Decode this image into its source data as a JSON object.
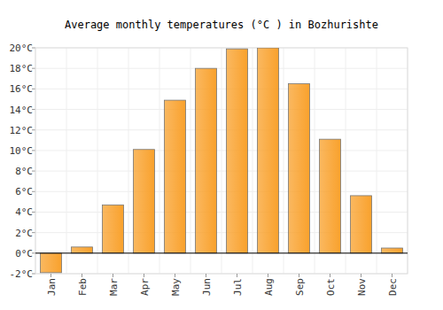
{
  "chart_data": {
    "type": "bar",
    "title": "Average monthly temperatures (°C ) in Bozhurishte",
    "categories": [
      "Jan",
      "Feb",
      "Mar",
      "Apr",
      "May",
      "Jun",
      "Jul",
      "Aug",
      "Sep",
      "Oct",
      "Nov",
      "Dec"
    ],
    "values": [
      -1.9,
      0.6,
      4.7,
      10.1,
      14.9,
      18.0,
      19.9,
      20.0,
      16.5,
      11.1,
      5.6,
      0.5
    ],
    "color": "#f9a12c",
    "ylim": [
      -2,
      20
    ],
    "yticks": [
      {
        "value": -2,
        "label": "-2°C"
      },
      {
        "value": 0,
        "label": "0°C"
      },
      {
        "value": 2,
        "label": "2°C"
      },
      {
        "value": 4,
        "label": "4°C"
      },
      {
        "value": 6,
        "label": "6°C"
      },
      {
        "value": 8,
        "label": "8°C"
      },
      {
        "value": 10,
        "label": "10°C"
      },
      {
        "value": 12,
        "label": "12°C"
      },
      {
        "value": 14,
        "label": "14°C"
      },
      {
        "value": 16,
        "label": "16°C"
      },
      {
        "value": 18,
        "label": "18°C"
      },
      {
        "value": 20,
        "label": "20°C"
      }
    ],
    "grid": true
  }
}
